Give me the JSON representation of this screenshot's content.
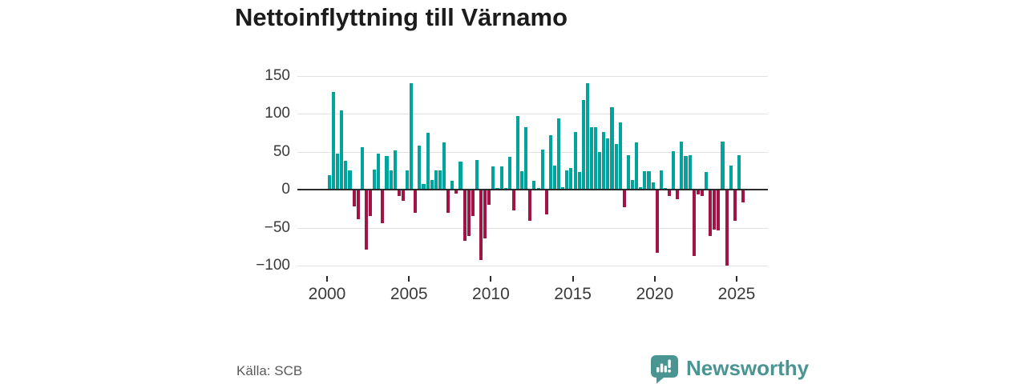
{
  "header": {
    "title": "Nettoinflyttning till Värnamo"
  },
  "chart_data": {
    "type": "bar",
    "title": "Nettoinflyttning till Värnamo",
    "frequency": "quarterly",
    "start_period": "2000-Q1",
    "end_period": "2025-Q2",
    "values": [
      19,
      129,
      48,
      105,
      38,
      26,
      -22,
      -39,
      56,
      -79,
      -35,
      27,
      48,
      -44,
      44,
      26,
      52,
      -8,
      -15,
      26,
      141,
      -30,
      58,
      8,
      75,
      13,
      26,
      26,
      62,
      -30,
      12,
      -5,
      37,
      -67,
      -61,
      -35,
      39,
      -93,
      -64,
      -20,
      31,
      2,
      31,
      2,
      43,
      -27,
      97,
      24,
      83,
      -41,
      12,
      2,
      53,
      -33,
      72,
      32,
      94,
      3,
      26,
      29,
      76,
      23,
      118,
      141,
      83,
      82,
      50,
      76,
      68,
      109,
      60,
      89,
      -23,
      46,
      13,
      62,
      3,
      24,
      25,
      10,
      -83,
      26,
      2,
      -8,
      51,
      -12,
      64,
      45,
      46,
      -87,
      -6,
      -8,
      23,
      -61,
      -53,
      -54,
      63,
      -100,
      32,
      -41,
      46,
      -17
    ],
    "ylim": [
      -100,
      150
    ],
    "ytick_values": [
      150,
      100,
      50,
      0,
      -50,
      -100
    ],
    "ytick_labels": [
      "150",
      "100",
      "50",
      "0",
      "−50",
      "−100"
    ],
    "xtick_years": [
      2000,
      2005,
      2010,
      2015,
      2020,
      2025
    ],
    "xtick_labels": [
      "2000",
      "2005",
      "2010",
      "2015",
      "2020",
      "2025"
    ],
    "colors": {
      "positive": "#00a49c",
      "negative": "#a01545"
    },
    "grid": "horizontal",
    "legend": "none"
  },
  "footer": {
    "source": "Källa: SCB",
    "brand": "Newsworthy",
    "brand_color": "#4a9492"
  }
}
